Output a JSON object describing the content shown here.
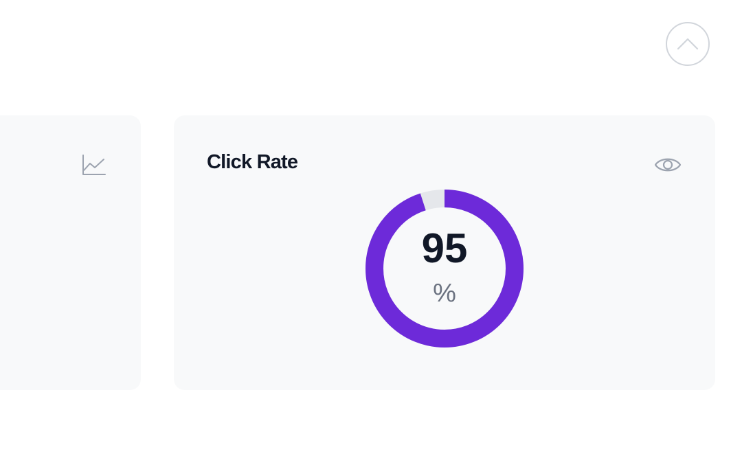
{
  "colors": {
    "accent": "#6d2ad9",
    "track": "#e5e7eb",
    "card_bg": "#f8f9fa",
    "title": "#111827",
    "muted": "#6b7280",
    "icon": "#9ca3af"
  },
  "scroll_top": {
    "icon": "chevron-up-icon"
  },
  "left_card": {
    "icon": "trend-chart-icon"
  },
  "click_rate_card": {
    "title": "Click Rate",
    "icon": "eye-icon",
    "gauge": {
      "value": "95",
      "unit": "%",
      "fraction": 0.95
    }
  }
}
